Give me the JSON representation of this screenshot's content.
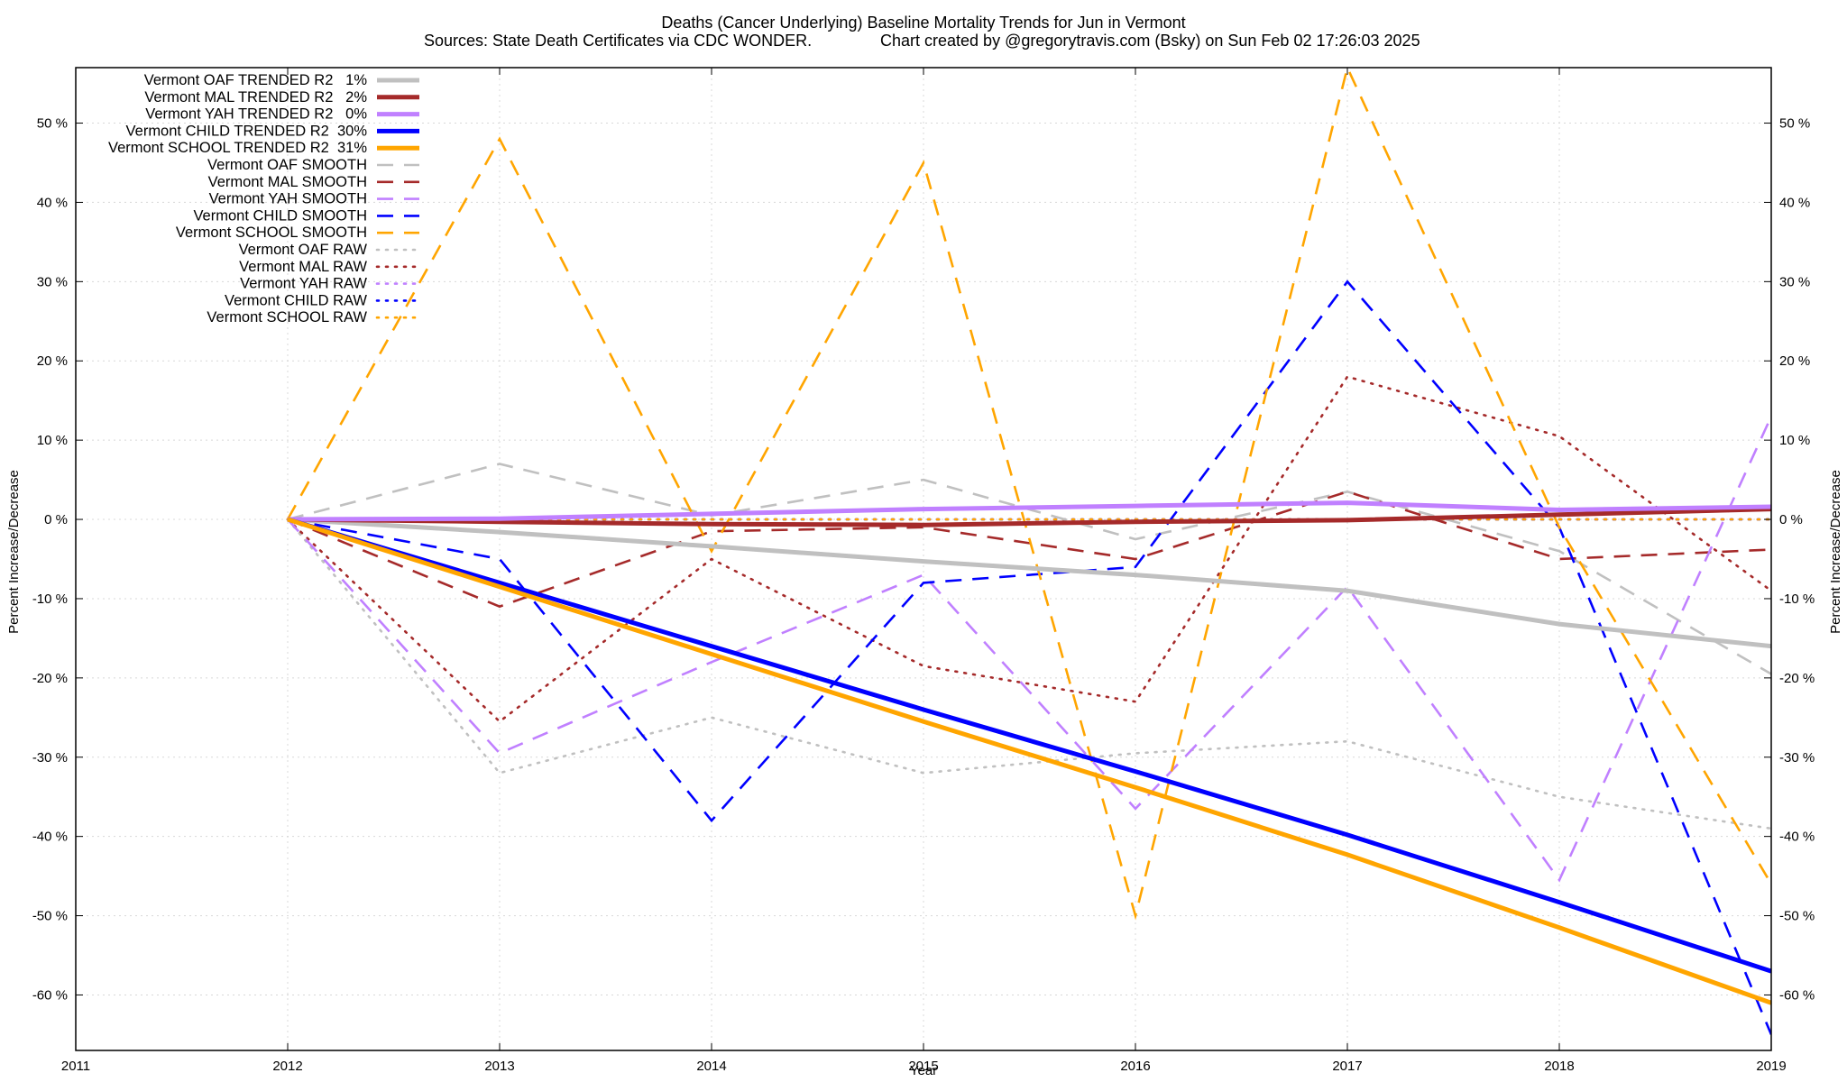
{
  "chart_data": {
    "type": "line",
    "title": "Deaths (Cancer Underlying)  Baseline Mortality Trends for Jun in Vermont",
    "subtitle_left": "Sources: State Death Certificates via CDC WONDER.",
    "subtitle_right": "Chart created by @gregorytravis.com (Bsky) on Sun Feb 02 17:26:03 2025",
    "xlabel": "Year",
    "ylabel_left": "Percent Increase/Decrease",
    "ylabel_right": "Percent Increase/Decrease",
    "xlim": [
      2011,
      2019
    ],
    "ylim": [
      -67,
      57
    ],
    "x_ticks": [
      "2011",
      "2012",
      "2013",
      "2014",
      "2015",
      "2016",
      "2017",
      "2018",
      "2019"
    ],
    "y_ticks": [
      {
        "value": 50,
        "label": "50 %"
      },
      {
        "value": 40,
        "label": "40 %"
      },
      {
        "value": 30,
        "label": "30 %"
      },
      {
        "value": 20,
        "label": "20 %"
      },
      {
        "value": 10,
        "label": "10 %"
      },
      {
        "value": 0,
        "label": "0 %"
      },
      {
        "value": -10,
        "label": "-10 %"
      },
      {
        "value": -20,
        "label": "-20 %"
      },
      {
        "value": -30,
        "label": "-30 %"
      },
      {
        "value": -40,
        "label": "-40 %"
      },
      {
        "value": -50,
        "label": "-50 %"
      },
      {
        "value": -60,
        "label": "-60 %"
      }
    ],
    "grid": true,
    "legend_position": "top-left",
    "x": [
      2012,
      2013,
      2014,
      2015,
      2016,
      2017,
      2018,
      2019
    ],
    "series": [
      {
        "name": "Vermont OAF TRENDED R2   1%",
        "color": "#c0c0c0",
        "style": "solid",
        "values": [
          0,
          -1.6,
          -3.4,
          -5.3,
          -7.0,
          -9.0,
          -13.2,
          -16.0
        ]
      },
      {
        "name": "Vermont MAL TRENDED R2   2%",
        "color": "#a52a2a",
        "style": "solid",
        "values": [
          0,
          -0.3,
          -0.6,
          -0.7,
          -0.3,
          -0.1,
          0.6,
          1.3
        ]
      },
      {
        "name": "Vermont YAH TRENDED R2   0%",
        "color": "#c080ff",
        "style": "solid",
        "values": [
          0,
          0.1,
          0.7,
          1.3,
          1.7,
          2.1,
          1.2,
          1.6
        ]
      },
      {
        "name": "Vermont CHILD TRENDED R2  30%",
        "color": "#0000ff",
        "style": "solid",
        "values": [
          0,
          -8.0,
          -16.0,
          -24.0,
          -31.8,
          -39.8,
          -48.3,
          -57.0
        ]
      },
      {
        "name": "Vermont SCHOOL TRENDED R2  31%",
        "color": "#ffa500",
        "style": "solid",
        "values": [
          0,
          -8.5,
          -17.0,
          -25.5,
          -33.8,
          -42.3,
          -51.5,
          -61.0
        ]
      },
      {
        "name": "Vermont OAF SMOOTH",
        "color": "#c0c0c0",
        "style": "dash",
        "values": [
          0,
          7.0,
          0.5,
          5.0,
          -2.5,
          3.5,
          -4.0,
          -19.5
        ]
      },
      {
        "name": "Vermont MAL SMOOTH",
        "color": "#a52a2a",
        "style": "dash",
        "values": [
          0,
          -11.0,
          -1.5,
          -1.0,
          -5.0,
          3.5,
          -5.0,
          -3.8
        ]
      },
      {
        "name": "Vermont YAH SMOOTH",
        "color": "#c080ff",
        "style": "dash",
        "values": [
          0,
          -29.5,
          -18.0,
          -7.0,
          -36.5,
          -8.5,
          -45.5,
          13.0
        ]
      },
      {
        "name": "Vermont CHILD SMOOTH",
        "color": "#0000ff",
        "style": "dash",
        "values": [
          0,
          -5.0,
          -38.0,
          -8.0,
          -6.0,
          30.0,
          -1.0,
          -65.0
        ]
      },
      {
        "name": "Vermont SCHOOL SMOOTH",
        "color": "#ffa500",
        "style": "dash",
        "values": [
          0,
          48.0,
          -4.0,
          45.0,
          -50.0,
          57.0,
          -1.0,
          -46.0
        ]
      },
      {
        "name": "Vermont OAF RAW",
        "color": "#c0c0c0",
        "style": "dot",
        "values": [
          0,
          -32.0,
          -25.0,
          -32.0,
          -29.5,
          -28.0,
          -35.0,
          -39.0
        ]
      },
      {
        "name": "Vermont MAL RAW",
        "color": "#a52a2a",
        "style": "dot",
        "values": [
          0,
          -25.5,
          -5.0,
          -18.5,
          -23.0,
          18.0,
          10.5,
          -9.0
        ]
      },
      {
        "name": "Vermont YAH RAW",
        "color": "#c080ff",
        "style": "dot",
        "values": [
          0,
          0,
          0,
          0,
          0,
          0,
          0,
          0
        ]
      },
      {
        "name": "Vermont CHILD RAW",
        "color": "#0000ff",
        "style": "dot",
        "values": [
          0,
          0,
          0,
          0,
          0,
          0,
          0,
          0
        ]
      },
      {
        "name": "Vermont SCHOOL RAW",
        "color": "#ffa500",
        "style": "dot",
        "values": [
          0,
          0,
          0,
          0,
          0,
          0,
          0,
          0
        ]
      }
    ]
  }
}
